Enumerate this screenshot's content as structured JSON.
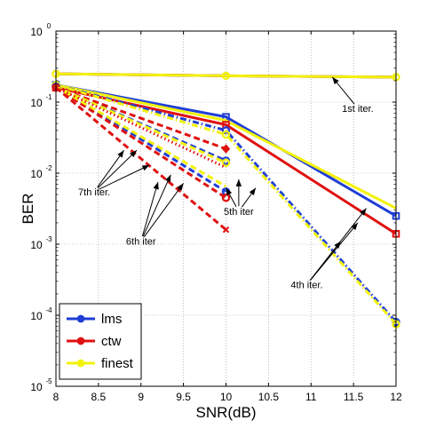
{
  "chart_data": {
    "type": "line",
    "xlabel": "SNR(dB)",
    "ylabel": "BER",
    "xlim": [
      8,
      12
    ],
    "ylim": [
      1e-05,
      1
    ],
    "yscale": "log",
    "x_ticks": [
      8,
      8.5,
      9,
      9.5,
      10,
      10.5,
      11,
      11.5,
      12
    ],
    "x_tick_labels": [
      "8",
      "8.5",
      "9",
      "9.5",
      "10",
      "10.5",
      "11",
      "11.5",
      "12"
    ],
    "y_ticks": [
      1e-05,
      0.0001,
      0.001,
      0.01,
      0.1,
      1
    ],
    "y_tick_labels": [
      {
        "base": "10",
        "exp": "-5"
      },
      {
        "base": "10",
        "exp": "-4"
      },
      {
        "base": "10",
        "exp": "-3"
      },
      {
        "base": "10",
        "exp": "-2"
      },
      {
        "base": "10",
        "exp": "-1"
      },
      {
        "base": "10",
        "exp": "0"
      }
    ],
    "grid": true,
    "legend_position": "bottom-left",
    "legend": [
      {
        "label": "lms",
        "color": "#1f3fd6"
      },
      {
        "label": "ctw",
        "color": "#e01010"
      },
      {
        "label": "finest",
        "color": "#f2f20a"
      }
    ],
    "series": [
      {
        "group": "1st iter.",
        "color": "#1f3fd6",
        "style": "solid",
        "x": [
          8,
          10,
          12
        ],
        "y": [
          0.25,
          0.235,
          0.225
        ]
      },
      {
        "group": "1st iter.",
        "color": "#e01010",
        "style": "solid",
        "x": [
          8,
          10,
          12
        ],
        "y": [
          0.25,
          0.235,
          0.225
        ]
      },
      {
        "group": "1st iter.",
        "color": "#f2f20a",
        "style": "solid",
        "marker": "circle",
        "x": [
          8,
          10,
          12
        ],
        "y": [
          0.25,
          0.235,
          0.225
        ]
      },
      {
        "group": "4th iter.",
        "color": "#1f3fd6",
        "style": "solid",
        "marker": "square",
        "x": [
          8,
          10,
          12
        ],
        "y": [
          0.175,
          0.062,
          0.0025
        ]
      },
      {
        "group": "4th iter.",
        "color": "#f2f20a",
        "style": "solid",
        "x": [
          8,
          10,
          12
        ],
        "y": [
          0.175,
          0.055,
          0.0032
        ]
      },
      {
        "group": "4th iter.",
        "color": "#e01010",
        "style": "solid",
        "marker": "square",
        "x": [
          8,
          10,
          12
        ],
        "y": [
          0.16,
          0.048,
          0.0014
        ]
      },
      {
        "group": "4th iter.",
        "color": "#1f3fd6",
        "style": "dashdot",
        "marker": "circle",
        "x": [
          8,
          10,
          12
        ],
        "y": [
          0.175,
          0.04,
          8e-05
        ]
      },
      {
        "group": "4th iter.",
        "color": "#f2f20a",
        "style": "dashdot",
        "marker": "circle",
        "x": [
          8,
          10,
          12
        ],
        "y": [
          0.175,
          0.035,
          7.5e-05
        ]
      },
      {
        "group": "5th iter",
        "color": "#1f3fd6",
        "style": "dashed",
        "marker": "circle",
        "x": [
          8,
          10
        ],
        "y": [
          0.165,
          0.015
        ]
      },
      {
        "group": "5th iter",
        "color": "#e01010",
        "style": "dashed",
        "marker": "diamond",
        "x": [
          8,
          10
        ],
        "y": [
          0.16,
          0.022
        ]
      },
      {
        "group": "5th iter",
        "color": "#f2f20a",
        "style": "dashed",
        "marker": "circle",
        "x": [
          8,
          10
        ],
        "y": [
          0.165,
          0.014
        ]
      },
      {
        "group": "6th iter",
        "color": "#1f3fd6",
        "style": "dashed",
        "marker": "circle",
        "x": [
          8,
          10
        ],
        "y": [
          0.165,
          0.0055
        ]
      },
      {
        "group": "6th iter",
        "color": "#e01010",
        "style": "dashed",
        "marker": "circle",
        "x": [
          8,
          10
        ],
        "y": [
          0.16,
          0.0045
        ]
      },
      {
        "group": "6th iter",
        "color": "#f2f20a",
        "style": "dashed",
        "x": [
          8,
          10
        ],
        "y": [
          0.165,
          0.0065
        ]
      },
      {
        "group": "7th iter.",
        "color": "#e01010",
        "style": "dotted",
        "x": [
          8,
          10
        ],
        "y": [
          0.16,
          0.012
        ]
      },
      {
        "group": "7th iter.",
        "color": "#e01010",
        "style": "dashed",
        "marker": "x",
        "x": [
          8,
          10
        ],
        "y": [
          0.16,
          0.0016
        ]
      }
    ],
    "annotations": [
      {
        "text": "1st iter.",
        "x": 11.55,
        "y": 0.082,
        "arrows": [
          [
            11.25,
            0.225
          ]
        ]
      },
      {
        "text": "4th iter.",
        "x": 10.95,
        "y": 0.00027,
        "arrows": [
          [
            11.35,
            0.0011
          ],
          [
            11.55,
            0.002
          ],
          [
            11.65,
            0.0032
          ]
        ]
      },
      {
        "text": "5th iter",
        "x": 10.15,
        "y": 0.0029,
        "arrows": [
          [
            10.0,
            0.0062
          ],
          [
            10.15,
            0.0082
          ],
          [
            10.35,
            0.0062
          ]
        ]
      },
      {
        "text": "6th iter",
        "x": 9.0,
        "y": 0.0011,
        "arrows": [
          [
            9.2,
            0.0075
          ],
          [
            9.35,
            0.0095
          ],
          [
            9.5,
            0.0072
          ]
        ]
      },
      {
        "text": "7th iter.",
        "x": 8.45,
        "y": 0.0055,
        "arrows": [
          [
            8.8,
            0.021
          ],
          [
            8.95,
            0.021
          ],
          [
            9.1,
            0.013
          ]
        ]
      }
    ]
  }
}
